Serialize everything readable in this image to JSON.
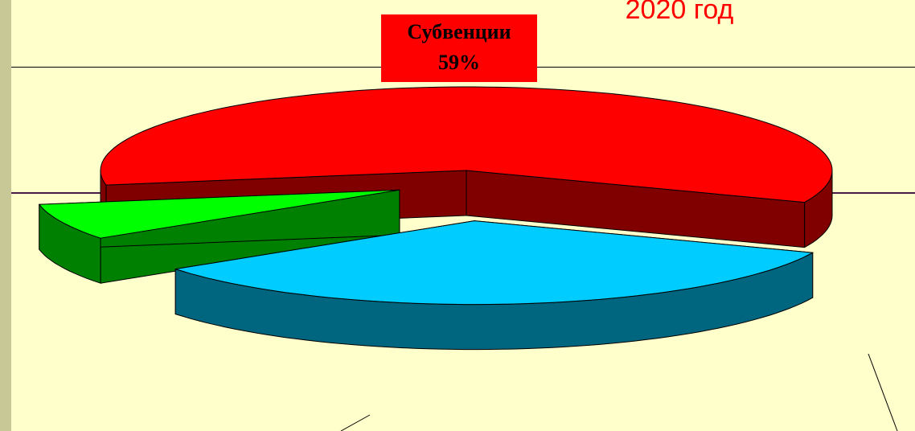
{
  "chart_data": {
    "type": "pie3d",
    "title": "2020 год",
    "categories": [
      "Субвенции",
      null,
      null
    ],
    "values": [
      59,
      34,
      7
    ],
    "value_labels": [
      "59%",
      null,
      null
    ],
    "colors": [
      "#ff0000",
      "#00ccff",
      "#00ff00"
    ],
    "side_colors": [
      "#800000",
      "#006680",
      "#008000"
    ]
  }
}
